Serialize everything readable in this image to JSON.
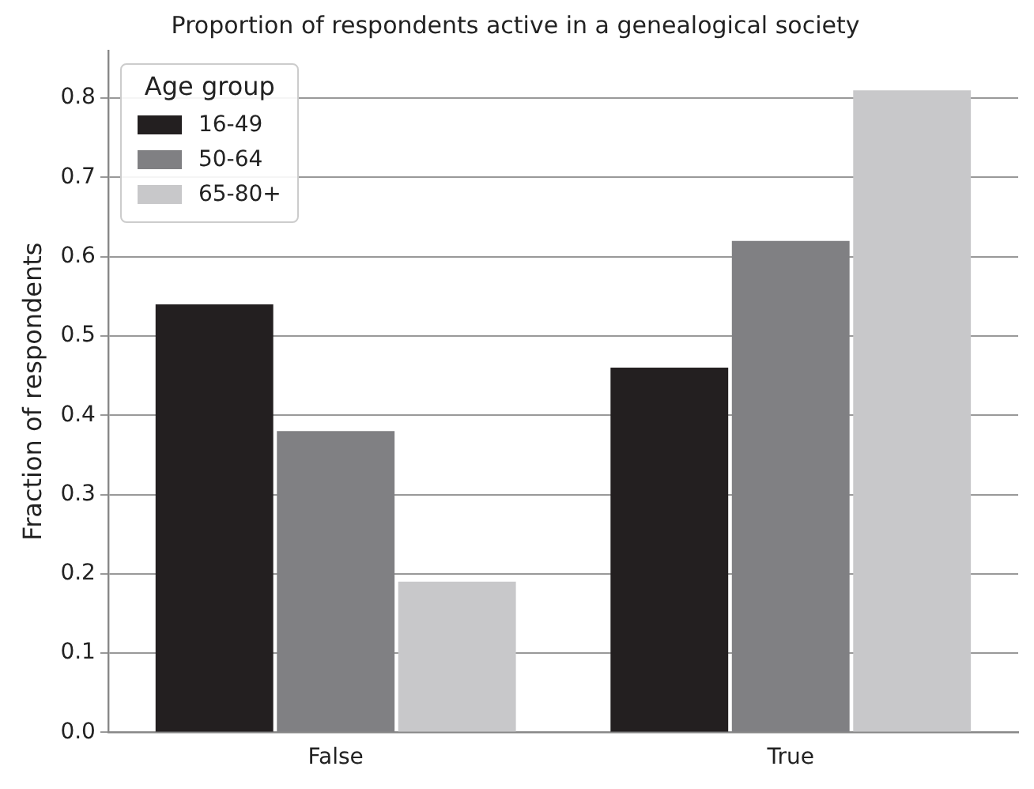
{
  "chart_data": {
    "type": "bar",
    "title": "Proportion of respondents active in a genealogical society",
    "ylabel": "Fraction of respondents",
    "legend_title": "Age group",
    "categories": [
      "False",
      "True"
    ],
    "series": [
      {
        "name": "16-49",
        "color": "#231f20",
        "values": [
          0.54,
          0.46
        ]
      },
      {
        "name": "50-64",
        "color": "#808083",
        "values": [
          0.38,
          0.62
        ]
      },
      {
        "name": "65-80+",
        "color": "#c8c8ca",
        "values": [
          0.19,
          0.81
        ]
      }
    ],
    "ylim": [
      0,
      0.86
    ],
    "yticks": [
      {
        "value": 0,
        "label": "0.0"
      },
      0.1,
      0.2,
      0.3,
      0.4,
      0.5,
      0.6,
      0.7,
      0.8
    ],
    "grid": "y",
    "legend": "top left"
  }
}
